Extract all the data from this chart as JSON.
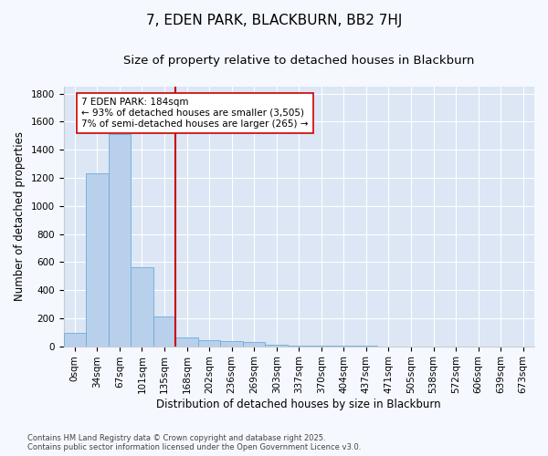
{
  "title": "7, EDEN PARK, BLACKBURN, BB2 7HJ",
  "subtitle": "Size of property relative to detached houses in Blackburn",
  "xlabel": "Distribution of detached houses by size in Blackburn",
  "ylabel": "Number of detached properties",
  "categories": [
    "0sqm",
    "34sqm",
    "67sqm",
    "101sqm",
    "135sqm",
    "168sqm",
    "202sqm",
    "236sqm",
    "269sqm",
    "303sqm",
    "337sqm",
    "370sqm",
    "404sqm",
    "437sqm",
    "471sqm",
    "505sqm",
    "538sqm",
    "572sqm",
    "606sqm",
    "639sqm",
    "673sqm"
  ],
  "values": [
    95,
    1230,
    1515,
    560,
    210,
    65,
    45,
    35,
    28,
    10,
    5,
    3,
    2,
    1,
    0,
    0,
    0,
    0,
    0,
    0,
    0
  ],
  "bar_color": "#b8d0eb",
  "bar_edge_color": "#6aaed6",
  "vline_index": 5,
  "vline_color": "#cc0000",
  "annotation_text": "7 EDEN PARK: 184sqm\n← 93% of detached houses are smaller (3,505)\n7% of semi-detached houses are larger (265) →",
  "annotation_box_facecolor": "#ffffff",
  "annotation_box_edgecolor": "#cc0000",
  "ylim": [
    0,
    1850
  ],
  "yticks": [
    0,
    200,
    400,
    600,
    800,
    1000,
    1200,
    1400,
    1600,
    1800
  ],
  "fig_facecolor": "#f5f8fe",
  "ax_facecolor": "#dce6f5",
  "grid_color": "#ffffff",
  "title_fontsize": 11,
  "subtitle_fontsize": 9.5,
  "axis_label_fontsize": 8.5,
  "tick_fontsize": 7.5,
  "footnote": "Contains HM Land Registry data © Crown copyright and database right 2025.\nContains public sector information licensed under the Open Government Licence v3.0."
}
